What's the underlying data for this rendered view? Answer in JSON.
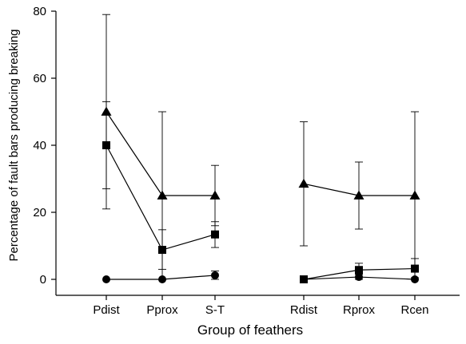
{
  "chart_data": {
    "type": "line",
    "title": "",
    "xlabel": "Group of feathers",
    "ylabel": "Percentage of fault bars producing breaking",
    "ylim": [
      0,
      80
    ],
    "yticks": [
      0,
      20,
      40,
      60,
      80
    ],
    "categories": [
      "Pdist",
      "Pprox",
      "S-T",
      "Rdist",
      "Rprox",
      "Rcen"
    ],
    "segments": [
      [
        0,
        1,
        2
      ],
      [
        3,
        4,
        5
      ]
    ],
    "grid": false,
    "legend": "none",
    "series": [
      {
        "marker": "triangle",
        "values": [
          50,
          25,
          25,
          28.5,
          25,
          25
        ],
        "err_low": [
          27,
          0,
          16,
          10,
          15,
          0
        ],
        "err_high": [
          79,
          50,
          34,
          47,
          35,
          50
        ]
      },
      {
        "marker": "square",
        "values": [
          40,
          8.8,
          13.4,
          0,
          2.8,
          3.2
        ],
        "err_low": [
          21,
          3,
          9.5,
          0,
          1.5,
          0.5
        ],
        "err_high": [
          53,
          14.8,
          17.2,
          0,
          4.8,
          6.2
        ]
      },
      {
        "marker": "circle",
        "values": [
          0,
          0,
          1.2,
          0,
          0.7,
          0
        ],
        "err_low": [
          0,
          0,
          0,
          0,
          0,
          0
        ],
        "err_high": [
          0,
          0,
          2.5,
          0,
          1.5,
          0
        ]
      }
    ]
  }
}
